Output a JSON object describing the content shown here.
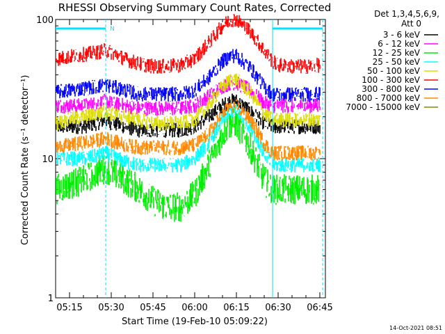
{
  "title": "RHESSI Observing Summary Count Rates, Corrected",
  "ylabel": "Corrected Count Rate (s⁻¹ detector⁻¹)",
  "xlabel": "Start Time (19-Feb-10 05:09:22)",
  "footer_date": "14-Oct-2021 08:51",
  "legend": {
    "header_line1": "Det 1,3,4,5,6,9,",
    "header_line2": "Att 0"
  },
  "markers": {
    "night_flag": "N"
  },
  "colors": {
    "3-6": "#000000",
    "6-12": "#ff00ff",
    "12-25": "#00ee00",
    "25-50": "#00ffff",
    "50-100": "#dddd00",
    "100-300": "#ff0000",
    "300-800": "#0000ff",
    "800-7000": "#ff8800",
    "7000-15000": "#888800",
    "cyan_marker": "#00e5ff"
  },
  "chart_data": {
    "type": "line",
    "title": "RHESSI Observing Summary Count Rates, Corrected",
    "xlabel": "Start Time (19-Feb-10 05:09:22)",
    "ylabel": "Corrected Count Rate (s⁻¹ detector⁻¹)",
    "yscale": "log",
    "ylim": [
      1,
      100
    ],
    "xlim": [
      "05:10",
      "06:47"
    ],
    "x_ticks": [
      "05:15",
      "05:30",
      "05:45",
      "06:00",
      "06:15",
      "06:30",
      "06:45"
    ],
    "y_ticks": [
      "1",
      "10",
      "100"
    ],
    "legend_position": "right",
    "x": [
      "05:10",
      "05:15",
      "05:20",
      "05:25",
      "05:28",
      "05:30",
      "05:35",
      "05:40",
      "05:45",
      "05:50",
      "05:55",
      "06:00",
      "06:05",
      "06:10",
      "06:13",
      "06:15",
      "06:20",
      "06:25",
      "06:28",
      "06:30",
      "06:35",
      "06:40",
      "06:45"
    ],
    "series": [
      {
        "name": "3 - 6 keV",
        "color": "#000000",
        "values": [
          17,
          17,
          17,
          18,
          19,
          18,
          17,
          16,
          16,
          16,
          16,
          17,
          20,
          24,
          26,
          26,
          22,
          18,
          17,
          17,
          17,
          17,
          17
        ]
      },
      {
        "name": "6 - 12 keV",
        "color": "#ff00ff",
        "values": [
          24,
          24,
          24,
          25,
          26,
          25,
          24,
          23,
          23,
          23,
          23,
          24,
          28,
          33,
          35,
          35,
          31,
          25,
          24,
          24,
          24,
          24,
          24
        ]
      },
      {
        "name": "12 - 25 keV",
        "color": "#00ee00",
        "values": [
          6,
          6.5,
          7,
          8,
          8.5,
          8,
          7,
          6,
          5,
          4.5,
          4.5,
          5.5,
          9,
          15,
          18,
          18,
          12,
          7,
          6,
          6,
          6,
          6,
          6
        ]
      },
      {
        "name": "25 - 50 keV",
        "color": "#00ffff",
        "values": [
          10,
          10,
          10,
          10.5,
          11,
          10.5,
          9.5,
          9,
          9,
          9,
          9,
          10,
          13,
          19,
          22,
          22,
          17,
          11,
          9,
          9,
          9,
          9,
          9
        ]
      },
      {
        "name": "50 - 100 keV",
        "color": "#dddd00",
        "values": [
          18,
          19,
          20,
          21,
          22,
          21,
          20,
          19,
          18,
          18,
          18,
          19,
          24,
          33,
          37,
          37,
          30,
          21,
          19,
          19,
          19,
          19,
          19
        ]
      },
      {
        "name": "100 - 300 keV",
        "color": "#ff0000",
        "values": [
          52,
          54,
          56,
          58,
          60,
          58,
          52,
          48,
          46,
          46,
          47,
          52,
          68,
          90,
          100,
          100,
          82,
          60,
          50,
          47,
          46,
          46,
          47
        ]
      },
      {
        "name": "300 - 800 keV",
        "color": "#0000ff",
        "values": [
          30,
          31,
          32,
          33,
          34,
          33,
          31,
          29,
          29,
          29,
          29,
          31,
          38,
          50,
          55,
          55,
          45,
          33,
          29,
          29,
          29,
          29,
          29
        ]
      },
      {
        "name": "800 - 7000 keV",
        "color": "#ff8800",
        "values": [
          12,
          12.5,
          13,
          13.5,
          14,
          13.5,
          12.5,
          12,
          12,
          12,
          12,
          12.5,
          15,
          21,
          24,
          24,
          19,
          13,
          11,
          11,
          11,
          11,
          11
        ]
      },
      {
        "name": "7000 - 15000 keV",
        "color": "#888800",
        "values": [
          null,
          null,
          null,
          null,
          null,
          null,
          null,
          null,
          null,
          null,
          null,
          null,
          null,
          null,
          null,
          null,
          null,
          null,
          null,
          null,
          null,
          null,
          null
        ]
      }
    ],
    "annotations": [
      {
        "type": "night_bar",
        "label": "N",
        "from": "05:10",
        "to": "05:28"
      },
      {
        "type": "night_bar",
        "from": "06:28",
        "to": "06:46"
      },
      {
        "type": "dashed_vline",
        "x": "05:28"
      },
      {
        "type": "solid_vline",
        "x": "06:28"
      },
      {
        "type": "dashed_vline",
        "x": "06:46"
      }
    ]
  }
}
